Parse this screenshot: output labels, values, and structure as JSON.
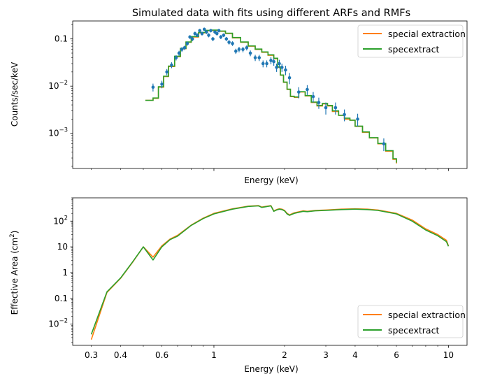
{
  "figure": {
    "colors": {
      "special": "#ff7f0e",
      "specextract": "#2ca02c",
      "data": "#1f77b4",
      "axes": "#000000"
    }
  },
  "chart_data": [
    {
      "type": "line",
      "id": "top",
      "title": "Simulated data with fits using different ARFs and RMFs",
      "xlabel": "Energy (keV)",
      "ylabel": "Counts/sec/keV",
      "xscale": "log",
      "yscale": "log",
      "xlim": [
        0.25,
        12
      ],
      "ylim": [
        0.00018,
        0.24
      ],
      "yticks": [
        {
          "value": 0.1,
          "label": "0.1",
          "base": "",
          "exp": ""
        },
        {
          "value": 0.01,
          "label": "",
          "base": "10",
          "exp": "−2"
        },
        {
          "value": 0.001,
          "label": "",
          "base": "10",
          "exp": "−3"
        }
      ],
      "xticks_labeled": false,
      "legend": {
        "position": "upper right",
        "entries": [
          "special extraction",
          "specextract"
        ]
      },
      "series": [
        {
          "name": "special extraction",
          "color": "#ff7f0e",
          "style": "steps",
          "x": [
            0.51,
            0.55,
            0.58,
            0.61,
            0.64,
            0.68,
            0.72,
            0.76,
            0.8,
            0.86,
            0.92,
            0.98,
            1.05,
            1.12,
            1.2,
            1.3,
            1.4,
            1.5,
            1.6,
            1.7,
            1.8,
            1.87,
            1.92,
            1.98,
            2.05,
            2.12,
            2.2,
            2.3,
            2.45,
            2.6,
            2.75,
            2.9,
            3.05,
            3.2,
            3.4,
            3.6,
            3.8,
            4.0,
            4.3,
            4.6,
            5.0,
            5.4,
            5.8,
            6.0
          ],
          "y": [
            0.005,
            0.0055,
            0.0095,
            0.016,
            0.026,
            0.042,
            0.062,
            0.085,
            0.11,
            0.135,
            0.15,
            0.152,
            0.145,
            0.13,
            0.105,
            0.085,
            0.07,
            0.06,
            0.052,
            0.045,
            0.038,
            0.025,
            0.017,
            0.012,
            0.0085,
            0.006,
            0.0058,
            0.0075,
            0.0062,
            0.0045,
            0.0038,
            0.0042,
            0.0038,
            0.0029,
            0.0024,
            0.002,
            0.0019,
            0.0014,
            0.00105,
            0.0008,
            0.0006,
            0.00042,
            0.00028,
            0.00023
          ]
        },
        {
          "name": "specextract",
          "color": "#2ca02c",
          "style": "steps",
          "x": [
            0.51,
            0.55,
            0.58,
            0.61,
            0.64,
            0.68,
            0.72,
            0.76,
            0.8,
            0.86,
            0.92,
            0.98,
            1.05,
            1.12,
            1.2,
            1.3,
            1.4,
            1.5,
            1.6,
            1.7,
            1.8,
            1.87,
            1.92,
            1.98,
            2.05,
            2.12,
            2.2,
            2.3,
            2.45,
            2.6,
            2.75,
            2.9,
            3.05,
            3.2,
            3.4,
            3.6,
            3.8,
            4.0,
            4.3,
            4.6,
            5.0,
            5.4,
            5.8,
            6.0
          ],
          "y": [
            0.005,
            0.0056,
            0.0097,
            0.0162,
            0.0265,
            0.043,
            0.063,
            0.086,
            0.112,
            0.137,
            0.152,
            0.154,
            0.147,
            0.132,
            0.107,
            0.086,
            0.071,
            0.061,
            0.053,
            0.046,
            0.039,
            0.0255,
            0.0172,
            0.0122,
            0.0086,
            0.0061,
            0.0059,
            0.0076,
            0.0063,
            0.0046,
            0.0039,
            0.0043,
            0.0039,
            0.003,
            0.0024,
            0.0021,
            0.0019,
            0.00142,
            0.00107,
            0.00081,
            0.00061,
            0.00043,
            0.00029,
            0.00024
          ]
        },
        {
          "name": "data",
          "color": "#1f77b4",
          "style": "errorbar",
          "x": [
            0.55,
            0.6,
            0.63,
            0.66,
            0.69,
            0.71,
            0.73,
            0.75,
            0.77,
            0.79,
            0.81,
            0.83,
            0.85,
            0.87,
            0.89,
            0.91,
            0.93,
            0.95,
            0.97,
            0.99,
            1.01,
            1.03,
            1.05,
            1.07,
            1.1,
            1.13,
            1.16,
            1.2,
            1.24,
            1.28,
            1.33,
            1.38,
            1.43,
            1.5,
            1.56,
            1.62,
            1.68,
            1.75,
            1.8,
            1.85,
            1.9,
            1.95,
            2.02,
            2.1,
            2.3,
            2.5,
            2.65,
            2.8,
            3.0,
            3.3,
            3.6,
            4.1,
            5.3
          ],
          "y": [
            0.0095,
            0.011,
            0.02,
            0.028,
            0.04,
            0.05,
            0.06,
            0.065,
            0.08,
            0.11,
            0.1,
            0.13,
            0.12,
            0.15,
            0.13,
            0.16,
            0.14,
            0.12,
            0.15,
            0.1,
            0.14,
            0.13,
            0.15,
            0.11,
            0.12,
            0.1,
            0.085,
            0.08,
            0.055,
            0.06,
            0.06,
            0.065,
            0.05,
            0.04,
            0.04,
            0.03,
            0.03,
            0.035,
            0.033,
            0.025,
            0.03,
            0.025,
            0.022,
            0.015,
            0.0075,
            0.0085,
            0.006,
            0.0045,
            0.0035,
            0.0035,
            0.0025,
            0.002,
            0.0006
          ],
          "err": [
            0.0018,
            0.002,
            0.003,
            0.004,
            0.005,
            0.006,
            0.007,
            0.007,
            0.008,
            0.01,
            0.01,
            0.012,
            0.011,
            0.013,
            0.012,
            0.014,
            0.013,
            0.012,
            0.013,
            0.01,
            0.012,
            0.012,
            0.013,
            0.011,
            0.011,
            0.01,
            0.009,
            0.009,
            0.007,
            0.008,
            0.008,
            0.008,
            0.007,
            0.006,
            0.006,
            0.005,
            0.005,
            0.006,
            0.006,
            0.005,
            0.006,
            0.005,
            0.005,
            0.004,
            0.002,
            0.002,
            0.0015,
            0.0012,
            0.001,
            0.001,
            0.0007,
            0.0006,
            0.00018
          ]
        }
      ]
    },
    {
      "type": "line",
      "id": "bottom",
      "title": "",
      "xlabel": "Energy (keV)",
      "ylabel": "Effective Area (cm²)",
      "ylabel_main": "Effective Area (cm",
      "ylabel_sup": "2",
      "ylabel_end": ")",
      "xscale": "log",
      "yscale": "log",
      "xlim": [
        0.25,
        12
      ],
      "ylim": [
        0.0015,
        800
      ],
      "xticks": [
        {
          "value": 0.3,
          "label": "0.3"
        },
        {
          "value": 0.4,
          "label": "0.4"
        },
        {
          "value": 0.6,
          "label": "0.6"
        },
        {
          "value": 1,
          "label": "1"
        },
        {
          "value": 2,
          "label": "2"
        },
        {
          "value": 3,
          "label": "3"
        },
        {
          "value": 4,
          "label": "4"
        },
        {
          "value": 6,
          "label": "6"
        },
        {
          "value": 10,
          "label": "10"
        }
      ],
      "yticks": [
        {
          "value": 100,
          "label": "",
          "base": "10",
          "exp": "2"
        },
        {
          "value": 10,
          "label": "10",
          "base": "",
          "exp": ""
        },
        {
          "value": 1,
          "label": "1",
          "base": "",
          "exp": ""
        },
        {
          "value": 0.1,
          "label": "0.1",
          "base": "",
          "exp": ""
        },
        {
          "value": 0.01,
          "label": "",
          "base": "10",
          "exp": "−2"
        }
      ],
      "legend": {
        "position": "lower right",
        "entries": [
          "special extraction",
          "specextract"
        ]
      },
      "series": [
        {
          "name": "special extraction",
          "color": "#ff7f0e",
          "x": [
            0.3,
            0.35,
            0.4,
            0.45,
            0.5,
            0.55,
            0.6,
            0.65,
            0.7,
            0.8,
            0.9,
            1.0,
            1.2,
            1.4,
            1.55,
            1.6,
            1.75,
            1.8,
            1.85,
            1.9,
            1.95,
            2.0,
            2.05,
            2.1,
            2.2,
            2.4,
            2.5,
            2.7,
            3.0,
            3.5,
            4.0,
            4.5,
            5.0,
            6.0,
            7.0,
            8.0,
            9.0,
            9.8,
            10.0
          ],
          "y": [
            0.0025,
            0.17,
            0.6,
            2.5,
            10,
            4,
            11,
            20,
            28,
            70,
            130,
            200,
            300,
            380,
            400,
            350,
            400,
            250,
            280,
            300,
            290,
            260,
            200,
            175,
            210,
            250,
            240,
            260,
            270,
            290,
            300,
            290,
            270,
            200,
            110,
            50,
            30,
            18,
            11
          ]
        },
        {
          "name": "specextract",
          "color": "#2ca02c",
          "x": [
            0.3,
            0.35,
            0.4,
            0.45,
            0.5,
            0.55,
            0.6,
            0.65,
            0.7,
            0.8,
            0.9,
            1.0,
            1.2,
            1.4,
            1.55,
            1.6,
            1.75,
            1.8,
            1.85,
            1.9,
            1.95,
            2.0,
            2.05,
            2.1,
            2.2,
            2.4,
            2.5,
            2.7,
            3.0,
            3.5,
            4.0,
            4.5,
            5.0,
            6.0,
            7.0,
            8.0,
            9.0,
            9.8,
            10.0
          ],
          "y": [
            0.004,
            0.18,
            0.62,
            2.6,
            10,
            3.1,
            10,
            19,
            26,
            68,
            125,
            190,
            290,
            370,
            390,
            340,
            390,
            240,
            270,
            290,
            280,
            250,
            190,
            168,
            200,
            240,
            232,
            250,
            262,
            280,
            290,
            280,
            260,
            190,
            100,
            45,
            27,
            16,
            10.5
          ]
        }
      ]
    }
  ]
}
